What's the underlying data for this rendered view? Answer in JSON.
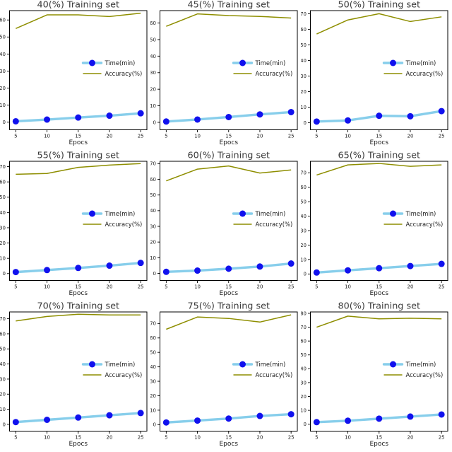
{
  "figure": {
    "xlabel": "Epocs",
    "legend_labels": [
      "Time(min)",
      "Accuracy(%)"
    ],
    "colors": {
      "time_line": "#87ceeb",
      "time_marker": "#1111ee",
      "accuracy_line": "#8e8e00",
      "title_text": "#3b3b3b",
      "tick_text": "#1a1a1a",
      "axis": "#000000",
      "background": "#ffffff"
    }
  },
  "chart_data": [
    {
      "type": "line",
      "title": "40(%) Training set",
      "xlabel": "Epocs",
      "x": [
        5,
        10,
        15,
        20,
        25
      ],
      "xticks": [
        5,
        10,
        15,
        20,
        25
      ],
      "series": [
        {
          "name": "Time(min)",
          "values": [
            0.5,
            1.5,
            2.7,
            3.8,
            5.2
          ]
        },
        {
          "name": "Accuracy(%)",
          "values": [
            55,
            63,
            63,
            62,
            64
          ]
        }
      ],
      "yticks": [
        0,
        10,
        20,
        30,
        40,
        50,
        60
      ],
      "ylim": [
        -4.5,
        65.5
      ],
      "xlim": [
        4,
        26
      ],
      "legend_position": "center right",
      "grid": false
    },
    {
      "type": "line",
      "title": "45(%) Training set",
      "xlabel": "Epocs",
      "x": [
        5,
        10,
        15,
        20,
        25
      ],
      "xticks": [
        5,
        10,
        15,
        20,
        25
      ],
      "series": [
        {
          "name": "Time(min)",
          "values": [
            0.5,
            1.7,
            3.2,
            4.8,
            6.2
          ]
        },
        {
          "name": "Accuracy(%)",
          "values": [
            58,
            65.5,
            64.5,
            64,
            63
          ]
        }
      ],
      "yticks": [
        0,
        10,
        20,
        30,
        40,
        50,
        60
      ],
      "ylim": [
        -4.5,
        67.5
      ],
      "xlim": [
        4,
        26
      ],
      "legend_position": "center right",
      "grid": false
    },
    {
      "type": "line",
      "title": "50(%) Training set",
      "xlabel": "Epocs",
      "x": [
        5,
        10,
        15,
        20,
        25
      ],
      "xticks": [
        5,
        10,
        15,
        20,
        25
      ],
      "series": [
        {
          "name": "Time(min)",
          "values": [
            0.8,
            1.5,
            4.5,
            4.2,
            7.5
          ]
        },
        {
          "name": "Accuracy(%)",
          "values": [
            57,
            66,
            70,
            65,
            68
          ]
        }
      ],
      "yticks": [
        0,
        10,
        20,
        30,
        40,
        50,
        60,
        70
      ],
      "ylim": [
        -4.5,
        72
      ],
      "xlim": [
        4,
        26
      ],
      "legend_position": "center right",
      "grid": false
    },
    {
      "type": "line",
      "title": "55(%) Training set",
      "xlabel": "Epocs",
      "x": [
        5,
        10,
        15,
        20,
        25
      ],
      "xticks": [
        5,
        10,
        15,
        20,
        25
      ],
      "series": [
        {
          "name": "Time(min)",
          "values": [
            1,
            2.3,
            3.7,
            5.2,
            7
          ]
        },
        {
          "name": "Accuracy(%)",
          "values": [
            65,
            65.5,
            69.5,
            71,
            72
          ]
        }
      ],
      "yticks": [
        0,
        10,
        20,
        30,
        40,
        50,
        60,
        70
      ],
      "ylim": [
        -4.5,
        73.5
      ],
      "xlim": [
        4,
        26
      ],
      "legend_position": "center right",
      "grid": false
    },
    {
      "type": "line",
      "title": "60(%) Training set",
      "xlabel": "Epocs",
      "x": [
        5,
        10,
        15,
        20,
        25
      ],
      "xticks": [
        5,
        10,
        15,
        20,
        25
      ],
      "series": [
        {
          "name": "Time(min)",
          "values": [
            1,
            1.8,
            3,
            4.4,
            6.3
          ]
        },
        {
          "name": "Accuracy(%)",
          "values": [
            59,
            66.5,
            68.5,
            64,
            66
          ]
        }
      ],
      "yticks": [
        0,
        10,
        20,
        30,
        40,
        50,
        60,
        70
      ],
      "ylim": [
        -4.5,
        71.5
      ],
      "xlim": [
        4,
        26
      ],
      "legend_position": "center right",
      "grid": false
    },
    {
      "type": "line",
      "title": "65(%) Training set",
      "xlabel": "Epocs",
      "x": [
        5,
        10,
        15,
        20,
        25
      ],
      "xticks": [
        5,
        10,
        15,
        20,
        25
      ],
      "series": [
        {
          "name": "Time(min)",
          "values": [
            1,
            2.5,
            4,
            5.5,
            7
          ]
        },
        {
          "name": "Accuracy(%)",
          "values": [
            68.5,
            75.5,
            76.5,
            74.5,
            75.5
          ]
        }
      ],
      "yticks": [
        0,
        10,
        20,
        30,
        40,
        50,
        60,
        70
      ],
      "ylim": [
        -4.5,
        78
      ],
      "xlim": [
        4,
        26
      ],
      "legend_position": "center right",
      "grid": false
    },
    {
      "type": "line",
      "title": "70(%) Training set",
      "xlabel": "Epocs",
      "x": [
        5,
        10,
        15,
        20,
        25
      ],
      "xticks": [
        5,
        10,
        15,
        20,
        25
      ],
      "series": [
        {
          "name": "Time(min)",
          "values": [
            1.5,
            3,
            4.5,
            6,
            7.5
          ]
        },
        {
          "name": "Accuracy(%)",
          "values": [
            68.5,
            71.5,
            73,
            72.5,
            72.5
          ]
        }
      ],
      "yticks": [
        0,
        10,
        20,
        30,
        40,
        50,
        60,
        70
      ],
      "ylim": [
        -4.5,
        74.5
      ],
      "xlim": [
        4,
        26
      ],
      "legend_position": "center right",
      "grid": false
    },
    {
      "type": "line",
      "title": "75(%) Training set",
      "xlabel": "Epocs",
      "x": [
        5,
        10,
        15,
        20,
        25
      ],
      "xticks": [
        5,
        10,
        15,
        20,
        25
      ],
      "series": [
        {
          "name": "Time(min)",
          "values": [
            1.5,
            2.8,
            4.2,
            6,
            7.2
          ]
        },
        {
          "name": "Accuracy(%)",
          "values": [
            66,
            74.5,
            73.5,
            71,
            76
          ]
        }
      ],
      "yticks": [
        0,
        10,
        20,
        30,
        40,
        50,
        60,
        70
      ],
      "ylim": [
        -4.5,
        78
      ],
      "xlim": [
        4,
        26
      ],
      "legend_position": "center right",
      "grid": false
    },
    {
      "type": "line",
      "title": "80(%) Training set",
      "xlabel": "Epocs",
      "x": [
        5,
        10,
        15,
        20,
        25
      ],
      "xticks": [
        5,
        10,
        15,
        20,
        25
      ],
      "series": [
        {
          "name": "Time(min)",
          "values": [
            1.5,
            2.5,
            4,
            5.5,
            7
          ]
        },
        {
          "name": "Accuracy(%)",
          "values": [
            70,
            78,
            76,
            76.5,
            76
          ]
        }
      ],
      "yticks": [
        0,
        10,
        20,
        30,
        40,
        50,
        60,
        70,
        80
      ],
      "ylim": [
        -5,
        81
      ],
      "xlim": [
        4,
        26
      ],
      "legend_position": "center right",
      "grid": false
    }
  ]
}
